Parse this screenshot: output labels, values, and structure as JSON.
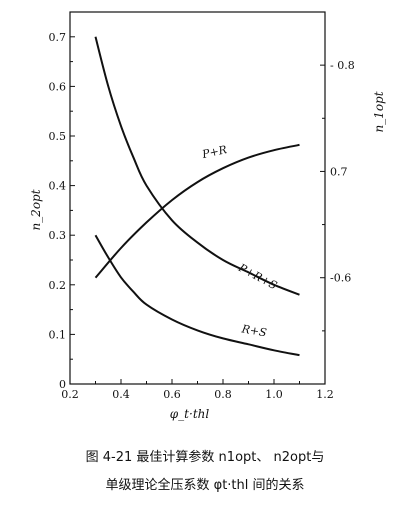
{
  "chart_data": {
    "type": "line",
    "x_label": "φ_t·thl",
    "y_label_left": "n_2opt",
    "y_label_right": "n_1opt",
    "x_range": [
      0.2,
      1.2
    ],
    "y_left_range": [
      0,
      0.75
    ],
    "y_right_range": [
      0.5,
      0.85
    ],
    "x_ticks": [
      "0.2",
      "0.4",
      "0.6",
      "0.8",
      "1.0",
      "1.2"
    ],
    "y_left_ticks": [
      "0",
      "0.1",
      "0.2",
      "0.3",
      "0.4",
      "0.5",
      "0.6",
      "0.7"
    ],
    "y_right_ticks": [
      "-0.6",
      "0.7",
      "- 0.8"
    ],
    "series": [
      {
        "name": "P+R",
        "axis": "right",
        "x": [
          0.3,
          0.4,
          0.5,
          0.6,
          0.7,
          0.8,
          0.9,
          1.0,
          1.1
        ],
        "y": [
          0.6,
          0.628,
          0.652,
          0.673,
          0.69,
          0.703,
          0.713,
          0.72,
          0.725
        ]
      },
      {
        "name": "P+R+S",
        "axis": "left",
        "x": [
          0.3,
          0.35,
          0.4,
          0.45,
          0.5,
          0.6,
          0.7,
          0.8,
          0.9,
          1.0,
          1.1
        ],
        "y": [
          0.7,
          0.6,
          0.52,
          0.455,
          0.4,
          0.33,
          0.285,
          0.25,
          0.225,
          0.2,
          0.18
        ]
      },
      {
        "name": "R+S",
        "axis": "left",
        "x": [
          0.3,
          0.35,
          0.4,
          0.45,
          0.5,
          0.6,
          0.7,
          0.8,
          0.9,
          1.0,
          1.1
        ],
        "y": [
          0.3,
          0.255,
          0.215,
          0.185,
          0.16,
          0.13,
          0.108,
          0.092,
          0.08,
          0.068,
          0.058
        ]
      }
    ]
  },
  "caption": {
    "line1": "图 4-21   最佳计算参数 n1opt、 n2opt与",
    "line2": "单级理论全压系数 φt·thl 间的关系"
  }
}
